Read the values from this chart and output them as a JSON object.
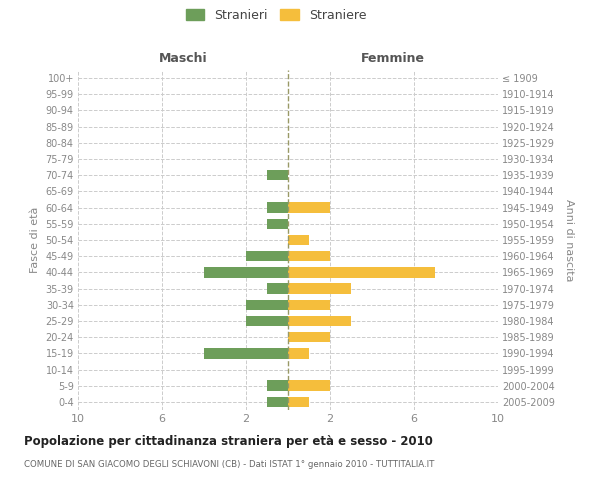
{
  "age_groups": [
    "100+",
    "95-99",
    "90-94",
    "85-89",
    "80-84",
    "75-79",
    "70-74",
    "65-69",
    "60-64",
    "55-59",
    "50-54",
    "45-49",
    "40-44",
    "35-39",
    "30-34",
    "25-29",
    "20-24",
    "15-19",
    "10-14",
    "5-9",
    "0-4"
  ],
  "birth_years": [
    "≤ 1909",
    "1910-1914",
    "1915-1919",
    "1920-1924",
    "1925-1929",
    "1930-1934",
    "1935-1939",
    "1940-1944",
    "1945-1949",
    "1950-1954",
    "1955-1959",
    "1960-1964",
    "1965-1969",
    "1970-1974",
    "1975-1979",
    "1980-1984",
    "1985-1989",
    "1990-1994",
    "1995-1999",
    "2000-2004",
    "2005-2009"
  ],
  "maschi": [
    0,
    0,
    0,
    0,
    0,
    0,
    1,
    0,
    1,
    1,
    0,
    2,
    4,
    1,
    2,
    2,
    0,
    4,
    0,
    1,
    1
  ],
  "femmine": [
    0,
    0,
    0,
    0,
    0,
    0,
    0,
    0,
    2,
    0,
    1,
    2,
    7,
    3,
    2,
    3,
    2,
    1,
    0,
    2,
    1
  ],
  "maschi_color": "#6d9e5a",
  "femmine_color": "#f5be3c",
  "background_color": "#ffffff",
  "grid_color": "#cccccc",
  "title": "Popolazione per cittadinanza straniera per età e sesso - 2010",
  "subtitle": "COMUNE DI SAN GIACOMO DEGLI SCHIAVONI (CB) - Dati ISTAT 1° gennaio 2010 - TUTTITALIA.IT",
  "xlabel_left": "Maschi",
  "xlabel_right": "Femmine",
  "ylabel_left": "Fasce di età",
  "ylabel_right": "Anni di nascita",
  "legend_maschi": "Stranieri",
  "legend_femmine": "Straniere",
  "xlim": 10
}
